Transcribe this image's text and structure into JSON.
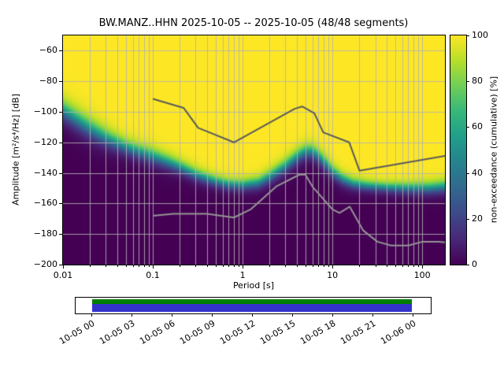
{
  "chart_data": {
    "type": "heatmap",
    "title": "BW.MANZ..HHN   2025-10-05 -- 2025-10-05  (48/48 segments)",
    "xlabel": "Period [s]",
    "ylabel": "Amplitude [m²/s⁴/Hz] [dB]",
    "x_scale": "log",
    "xlim": [
      0.01,
      179
    ],
    "ylim": [
      -200,
      -50
    ],
    "x_ticks": [
      0.01,
      0.1,
      1,
      10,
      100
    ],
    "x_tick_labels": [
      "0.01",
      "0.1",
      "1",
      "10",
      "100"
    ],
    "y_ticks": [
      -60,
      -80,
      -100,
      -120,
      -140,
      -160,
      -180,
      -200
    ],
    "y_tick_labels": [
      "−60",
      "−80",
      "−100",
      "−120",
      "−140",
      "−160",
      "−180",
      "−200"
    ],
    "grid_on": true,
    "grid_color": "#b2b2b2",
    "colorbar": {
      "label": "non-exceedance (cumulative) [%]",
      "lim": [
        0,
        100
      ],
      "ticks": [
        0,
        20,
        40,
        60,
        80,
        100
      ],
      "tick_labels": [
        "0",
        "20",
        "40",
        "60",
        "80",
        "100"
      ],
      "colormap": "viridis",
      "stops": [
        "#440154",
        "#482878",
        "#3e4989",
        "#31688e",
        "#26828e",
        "#1f9e89",
        "#35b779",
        "#6ece58",
        "#b5de2b",
        "#fde725"
      ]
    },
    "cumulative_midline_db": [
      [
        0.01,
        -99,
        4.0
      ],
      [
        0.02,
        -111,
        4.0
      ],
      [
        0.03,
        -117,
        3.5
      ],
      [
        0.05,
        -123,
        3.0
      ],
      [
        0.07,
        -126,
        3.0
      ],
      [
        0.1,
        -129,
        3.0
      ],
      [
        0.15,
        -133,
        2.8
      ],
      [
        0.2,
        -136,
        2.6
      ],
      [
        0.3,
        -141,
        2.4
      ],
      [
        0.5,
        -145.5,
        2.2
      ],
      [
        0.7,
        -147.5,
        2.2
      ],
      [
        1.0,
        -148,
        2.2
      ],
      [
        1.5,
        -146.5,
        2.4
      ],
      [
        2.0,
        -142.5,
        2.6
      ],
      [
        3.0,
        -135.5,
        2.8
      ],
      [
        4.0,
        -129.5,
        2.8
      ],
      [
        5.0,
        -126,
        2.8
      ],
      [
        6.0,
        -126,
        2.8
      ],
      [
        7.0,
        -129,
        2.8
      ],
      [
        8.5,
        -134,
        2.8
      ],
      [
        10.0,
        -139,
        2.6
      ],
      [
        13.0,
        -144,
        2.4
      ],
      [
        17.0,
        -147,
        2.2
      ],
      [
        25.0,
        -148.5,
        2.0
      ],
      [
        40.0,
        -149.5,
        2.0
      ],
      [
        70.0,
        -150,
        2.2
      ],
      [
        120.0,
        -150,
        2.4
      ],
      [
        179.0,
        -149,
        2.5
      ]
    ],
    "noise_models": {
      "high_color": "#5a5a5a",
      "low_color": "#949494",
      "nhnm": [
        [
          0.1,
          -91.5
        ],
        [
          0.22,
          -97.4
        ],
        [
          0.32,
          -110.5
        ],
        [
          0.8,
          -120.0
        ],
        [
          3.8,
          -98.0
        ],
        [
          4.6,
          -96.5
        ],
        [
          6.3,
          -101.0
        ],
        [
          7.9,
          -113.5
        ],
        [
          15.4,
          -120.0
        ],
        [
          20.0,
          -138.5
        ],
        [
          179.0,
          -128.9
        ]
      ],
      "nlnm": [
        [
          0.1,
          -168.0
        ],
        [
          0.17,
          -166.7
        ],
        [
          0.4,
          -166.7
        ],
        [
          0.8,
          -169.2
        ],
        [
          1.24,
          -163.7
        ],
        [
          2.4,
          -148.6
        ],
        [
          4.3,
          -141.1
        ],
        [
          5.0,
          -141.1
        ],
        [
          6.0,
          -149.0
        ],
        [
          10.0,
          -163.8
        ],
        [
          12.0,
          -166.2
        ],
        [
          15.6,
          -162.1
        ],
        [
          21.9,
          -177.5
        ],
        [
          31.6,
          -185.0
        ],
        [
          45.0,
          -187.5
        ],
        [
          70.0,
          -187.5
        ],
        [
          101.0,
          -185.0
        ],
        [
          154.0,
          -185.0
        ],
        [
          179.0,
          -185.4
        ]
      ]
    }
  },
  "timeline": {
    "tick_labels": [
      "10-05 00",
      "10-05 03",
      "10-05 06",
      "10-05 09",
      "10-05 12",
      "10-05 15",
      "10-05 18",
      "10-05 21",
      "10-06 00"
    ],
    "coverage": {
      "start_frac": 0.0464,
      "end_frac": 0.947
    },
    "colors": {
      "top": "#008000",
      "bottom": "#3333cc"
    }
  }
}
